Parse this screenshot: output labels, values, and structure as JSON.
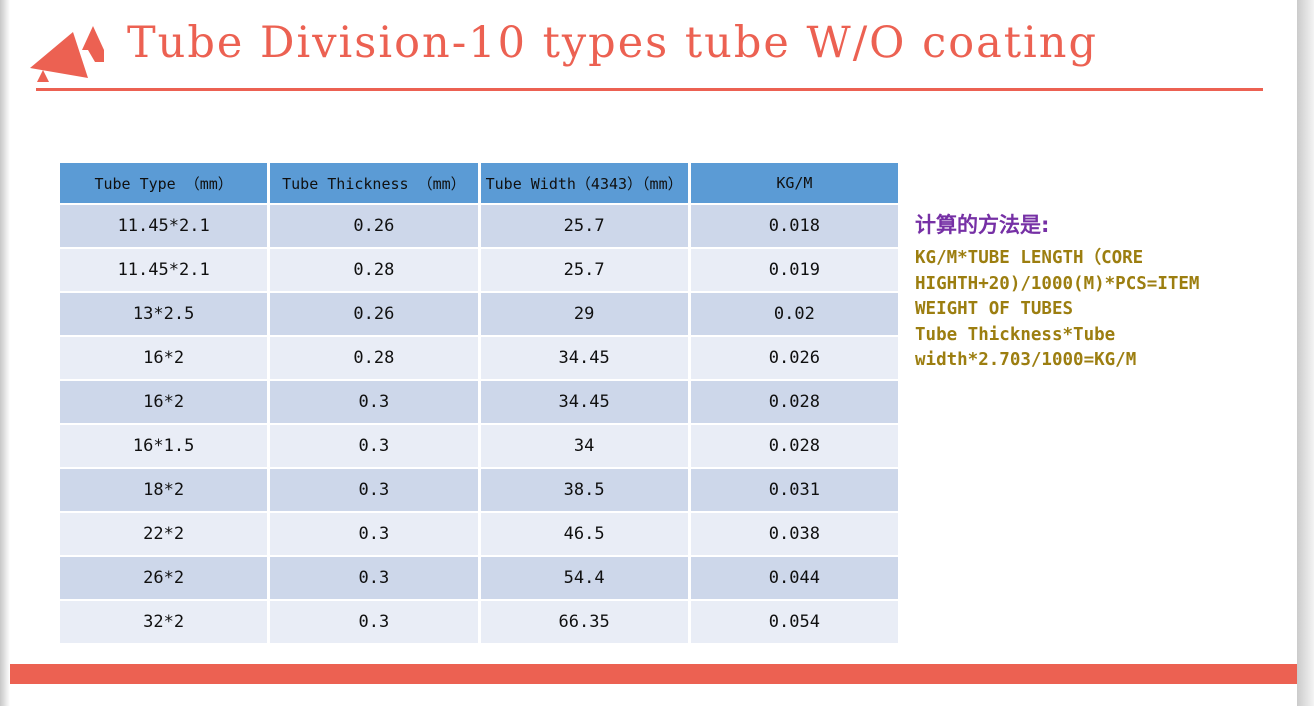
{
  "slide": {
    "title": "Tube Division-10 types tube W/O coating"
  },
  "colors": {
    "accent_red": "#EC6152",
    "table_header_blue": "#5B9BD5",
    "row_band_dark": "#CDD7EA",
    "row_band_light": "#E9EDF6",
    "note_heading_purple": "#7630A5",
    "note_text_gold": "#9C7E10"
  },
  "table": {
    "columns": [
      "Tube Type （mm）",
      "Tube Thickness （mm）",
      "Tube Width（4343）（mm）",
      "KG/M"
    ],
    "rows": [
      [
        "11.45*2.1",
        "0.26",
        "25.7",
        "0.018"
      ],
      [
        "11.45*2.1",
        "0.28",
        "25.7",
        "0.019"
      ],
      [
        "13*2.5",
        "0.26",
        "29",
        "0.02"
      ],
      [
        "16*2",
        "0.28",
        "34.45",
        "0.026"
      ],
      [
        "16*2",
        "0.3",
        "34.45",
        "0.028"
      ],
      [
        "16*1.5",
        "0.3",
        "34",
        "0.028"
      ],
      [
        "18*2",
        "0.3",
        "38.5",
        "0.031"
      ],
      [
        "22*2",
        "0.3",
        "46.5",
        "0.038"
      ],
      [
        "26*2",
        "0.3",
        "54.4",
        "0.044"
      ],
      [
        "32*2",
        "0.3",
        "66.35",
        "0.054"
      ]
    ]
  },
  "note": {
    "heading": "计算的方法是:",
    "lines": [
      "KG/M*TUBE LENGTH（CORE",
      "HIGHTH+20)/1000(M)*PCS=ITEM",
      "WEIGHT OF TUBES",
      "Tube Thickness*Tube",
      "width*2.703/1000=KG/M"
    ]
  }
}
